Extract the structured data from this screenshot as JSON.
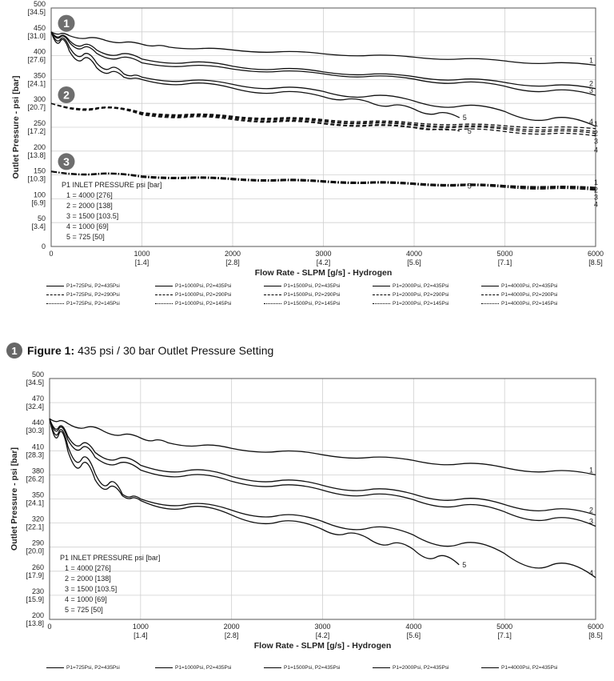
{
  "chart_data": [
    {
      "type": "line",
      "ylabel": "Outlet Pressure - psi [bar]",
      "xlabel": "Flow Rate - SLPM [g/s] - Hydrogen",
      "xlim": [
        0,
        6000
      ],
      "ylim": [
        0,
        500
      ],
      "x_ticks": [
        {
          "value": 0,
          "label": "0",
          "sub": ""
        },
        {
          "value": 1000,
          "label": "1000",
          "sub": "[1.4]"
        },
        {
          "value": 2000,
          "label": "2000",
          "sub": "[2.8]"
        },
        {
          "value": 3000,
          "label": "3000",
          "sub": "[4.2]"
        },
        {
          "value": 4000,
          "label": "4000",
          "sub": "[5.6]"
        },
        {
          "value": 5000,
          "label": "5000",
          "sub": "[7.1]"
        },
        {
          "value": 6000,
          "label": "6000",
          "sub": "[8.5]"
        }
      ],
      "y_ticks": [
        {
          "value": 0,
          "label": "0",
          "sub": ""
        },
        {
          "value": 50,
          "label": "50",
          "sub": "[3.4]"
        },
        {
          "value": 100,
          "label": "100",
          "sub": "[6.9]"
        },
        {
          "value": 150,
          "label": "150",
          "sub": "[10.3]"
        },
        {
          "value": 200,
          "label": "200",
          "sub": "[13.8]"
        },
        {
          "value": 250,
          "label": "250",
          "sub": "[17.2]"
        },
        {
          "value": 300,
          "label": "300",
          "sub": "[20.7]"
        },
        {
          "value": 350,
          "label": "350",
          "sub": "[24.1]"
        },
        {
          "value": 400,
          "label": "400",
          "sub": "[27.6]"
        },
        {
          "value": 450,
          "label": "450",
          "sub": "[31.0]"
        },
        {
          "value": 500,
          "label": "500",
          "sub": "[34.5]"
        }
      ],
      "badges": [
        {
          "label": "1",
          "x": 170,
          "y": 468
        },
        {
          "label": "2",
          "x": 170,
          "y": 318
        },
        {
          "label": "3",
          "x": 170,
          "y": 178
        }
      ],
      "inset": {
        "title": "P1 INLET PRESSURE psi [bar]",
        "lines": [
          "1 = 4000 [276]",
          "2 = 2000 [138]",
          "3 = 1500 [103.5]",
          "4 = 1000 [69]",
          "5 = 725 [50]"
        ]
      },
      "series": [
        {
          "name": "P1=4000Psi, P2=435Psi",
          "style": "solid",
          "end_label": "1",
          "x": [
            0,
            200,
            600,
            1000,
            1300,
            2000,
            3000,
            4000,
            5000,
            6000
          ],
          "y": [
            450,
            442,
            432,
            424,
            418,
            412,
            404,
            397,
            389,
            380
          ]
        },
        {
          "name": "P1=2000Psi, P2=435Psi",
          "style": "solid",
          "end_label": "2",
          "x": [
            0,
            200,
            500,
            1000,
            2000,
            3000,
            4000,
            5000,
            6000
          ],
          "y": [
            450,
            432,
            412,
            393,
            378,
            366,
            356,
            344,
            331
          ]
        },
        {
          "name": "P1=1500Psi, P2=435Psi",
          "style": "solid",
          "end_label": "3",
          "x": [
            0,
            200,
            500,
            1000,
            2000,
            3000,
            4000,
            5000,
            6000
          ],
          "y": [
            450,
            428,
            405,
            385,
            372,
            362,
            351,
            336,
            317
          ]
        },
        {
          "name": "P1=1000Psi, P2=435Psi",
          "style": "solid",
          "end_label": "4",
          "x": [
            0,
            200,
            500,
            800,
            1000,
            2000,
            3000,
            4000,
            5000,
            6000
          ],
          "y": [
            450,
            418,
            385,
            362,
            355,
            340,
            325,
            305,
            283,
            252
          ]
        },
        {
          "name": "P1=725Psi, P2=435Psi",
          "style": "solid",
          "end_label": "5",
          "x": [
            0,
            200,
            500,
            800,
            1000,
            2000,
            3000,
            3500,
            4000,
            4500
          ],
          "y": [
            450,
            410,
            375,
            355,
            350,
            332,
            314,
            303,
            288,
            270
          ]
        },
        {
          "name": "P1=4000Psi, P2=290Psi",
          "style": "dashed",
          "end_label": "1",
          "x": [
            0,
            1000,
            2000,
            3000,
            4000,
            5000,
            6000
          ],
          "y": [
            300,
            281,
            273,
            266,
            259,
            253,
            247
          ]
        },
        {
          "name": "P1=2000Psi, P2=290Psi",
          "style": "dashed",
          "end_label": "2",
          "x": [
            0,
            1000,
            2000,
            3000,
            4000,
            5000,
            6000
          ],
          "y": [
            300,
            280,
            272,
            264,
            256,
            249,
            241
          ]
        },
        {
          "name": "P1=1500Psi, P2=290Psi",
          "style": "dashed",
          "end_label": "3",
          "x": [
            0,
            1000,
            2000,
            3000,
            4000,
            5000,
            6000
          ],
          "y": [
            300,
            279,
            270,
            262,
            254,
            246,
            237
          ]
        },
        {
          "name": "P1=1000Psi, P2=290Psi",
          "style": "dashed",
          "end_label": "4",
          "x": [
            0,
            1000,
            2000,
            3000,
            4000,
            5000,
            6000
          ],
          "y": [
            300,
            278,
            268,
            259,
            250,
            241,
            232
          ]
        },
        {
          "name": "P1=725Psi, P2=290Psi",
          "style": "dashed",
          "end_label": "5",
          "x": [
            0,
            1000,
            2000,
            3000,
            4000,
            4500
          ],
          "y": [
            300,
            276,
            266,
            257,
            249,
            242
          ]
        },
        {
          "name": "P1=4000Psi, P2=145Psi",
          "style": "dashdot",
          "end_label": "1",
          "x": [
            0,
            1000,
            2000,
            3000,
            4000,
            5000,
            6000
          ],
          "y": [
            158,
            148,
            143,
            138,
            133,
            128,
            124
          ]
        },
        {
          "name": "P1=2000Psi, P2=145Psi",
          "style": "dashdot",
          "end_label": "2",
          "x": [
            0,
            1000,
            2000,
            3000,
            4000,
            5000,
            6000
          ],
          "y": [
            158,
            147,
            142,
            137,
            132,
            127,
            122
          ]
        },
        {
          "name": "P1=1500Psi, P2=145Psi",
          "style": "dashdot",
          "end_label": "3",
          "x": [
            0,
            1000,
            2000,
            3000,
            4000,
            5000,
            6000
          ],
          "y": [
            157,
            146,
            141,
            136,
            131,
            126,
            120
          ]
        },
        {
          "name": "P1=1000Psi, P2=145Psi",
          "style": "dashdot",
          "end_label": "4",
          "x": [
            0,
            1000,
            2000,
            3000,
            4000,
            5000,
            6000
          ],
          "y": [
            157,
            146,
            140,
            135,
            130,
            124,
            118
          ]
        },
        {
          "name": "P1=725Psi, P2=145Psi",
          "style": "dashdot",
          "end_label": "5",
          "x": [
            0,
            1000,
            2000,
            3000,
            4000,
            4500
          ],
          "y": [
            157,
            145,
            140,
            135,
            130,
            127
          ]
        }
      ],
      "legend": [
        [
          "P1=725Psi, P2=435Psi",
          "P1=1000Psi, P2=435Psi",
          "P1=1500Psi, P2=435Psi",
          "P1=2000Psi, P2=435Psi",
          "P1=4000Psi, P2=435Psi"
        ],
        [
          "P1=725Psi, P2=290Psi",
          "P1=1000Psi, P2=290Psi",
          "P1=1500Psi, P2=290Psi",
          "P1=2000Psi, P2=290Psi",
          "P1=4000Psi, P2=290Psi"
        ],
        [
          "P1=725Psi, P2=145Psi",
          "P1=1000Psi, P2=145Psi",
          "P1=1500Psi, P2=145Psi",
          "P1=2000Psi, P2=145Psi",
          "P1=4000Psi, P2=145Psi"
        ]
      ],
      "legend_styles": [
        "solid",
        "dashed",
        "dashdot"
      ],
      "grid": true
    },
    {
      "type": "line",
      "ylabel": "Outlet Pressure - psi [bar]",
      "xlabel": "Flow Rate - SLPM [g/s] - Hydrogen",
      "xlim": [
        0,
        6000
      ],
      "ylim": [
        200,
        500
      ],
      "x_ticks": [
        {
          "value": 0,
          "label": "0",
          "sub": ""
        },
        {
          "value": 1000,
          "label": "1000",
          "sub": "[1.4]"
        },
        {
          "value": 2000,
          "label": "2000",
          "sub": "[2.8]"
        },
        {
          "value": 3000,
          "label": "3000",
          "sub": "[4.2]"
        },
        {
          "value": 4000,
          "label": "4000",
          "sub": "[5.6]"
        },
        {
          "value": 5000,
          "label": "5000",
          "sub": "[7.1]"
        },
        {
          "value": 6000,
          "label": "6000",
          "sub": "[8.5]"
        }
      ],
      "y_ticks": [
        {
          "value": 200,
          "label": "200",
          "sub": "[13.8]"
        },
        {
          "value": 230,
          "label": "230",
          "sub": "[15.9]"
        },
        {
          "value": 260,
          "label": "260",
          "sub": "[17.9]"
        },
        {
          "value": 290,
          "label": "290",
          "sub": "[20.0]"
        },
        {
          "value": 320,
          "label": "320",
          "sub": "[22.1]"
        },
        {
          "value": 350,
          "label": "350",
          "sub": "[24.1]"
        },
        {
          "value": 380,
          "label": "380",
          "sub": "[26.2]"
        },
        {
          "value": 410,
          "label": "410",
          "sub": "[28.3]"
        },
        {
          "value": 440,
          "label": "440",
          "sub": "[30.3]"
        },
        {
          "value": 470,
          "label": "470",
          "sub": "[32.4]"
        },
        {
          "value": 500,
          "label": "500",
          "sub": "[34.5]"
        }
      ],
      "badges": [],
      "inset": {
        "title": "P1 INLET PRESSURE psi [bar]",
        "lines": [
          "1 = 4000 [276]",
          "2 = 2000 [138]",
          "3 = 1500 [103.5]",
          "4 = 1000 [69]",
          "5 = 725 [50]"
        ]
      },
      "series": [
        {
          "name": "P1=4000Psi, P2=435Psi",
          "style": "solid",
          "end_label": "1",
          "x": [
            0,
            200,
            600,
            1000,
            1300,
            2000,
            3000,
            4000,
            5000,
            6000
          ],
          "y": [
            450,
            444,
            434,
            426,
            420,
            413,
            405,
            398,
            389,
            380
          ]
        },
        {
          "name": "P1=2000Psi, P2=435Psi",
          "style": "solid",
          "end_label": "2",
          "x": [
            0,
            200,
            500,
            1000,
            2000,
            3000,
            4000,
            5000,
            6000
          ],
          "y": [
            450,
            428,
            408,
            392,
            378,
            367,
            356,
            343,
            330
          ]
        },
        {
          "name": "P1=1500Psi, P2=435Psi",
          "style": "solid",
          "end_label": "3",
          "x": [
            0,
            200,
            500,
            1000,
            2000,
            3000,
            4000,
            5000,
            6000
          ],
          "y": [
            450,
            424,
            402,
            386,
            372,
            361,
            349,
            334,
            316
          ]
        },
        {
          "name": "P1=1000Psi, P2=435Psi",
          "style": "solid",
          "end_label": "4",
          "x": [
            0,
            200,
            500,
            800,
            1000,
            2000,
            3000,
            4000,
            5000,
            6000
          ],
          "y": [
            450,
            416,
            382,
            356,
            350,
            336,
            322,
            305,
            282,
            252
          ]
        },
        {
          "name": "P1=725Psi, P2=435Psi",
          "style": "solid",
          "end_label": "5",
          "x": [
            0,
            200,
            500,
            800,
            1000,
            2000,
            3000,
            3500,
            4000,
            4500
          ],
          "y": [
            450,
            410,
            374,
            354,
            348,
            330,
            312,
            301,
            287,
            268
          ]
        }
      ],
      "legend": [
        [
          "P1=725Psi, P2=435Psi",
          "P1=1000Psi, P2=435Psi",
          "P1=1500Psi, P2=435Psi",
          "P1=2000Psi, P2=435Psi",
          "P1=4000Psi, P2=435Psi"
        ]
      ],
      "legend_styles": [
        "solid"
      ],
      "grid": true
    }
  ],
  "caption": {
    "badge": "1",
    "bold": "Figure 1:",
    "text": "435 psi / 30 bar Outlet Pressure Setting"
  }
}
